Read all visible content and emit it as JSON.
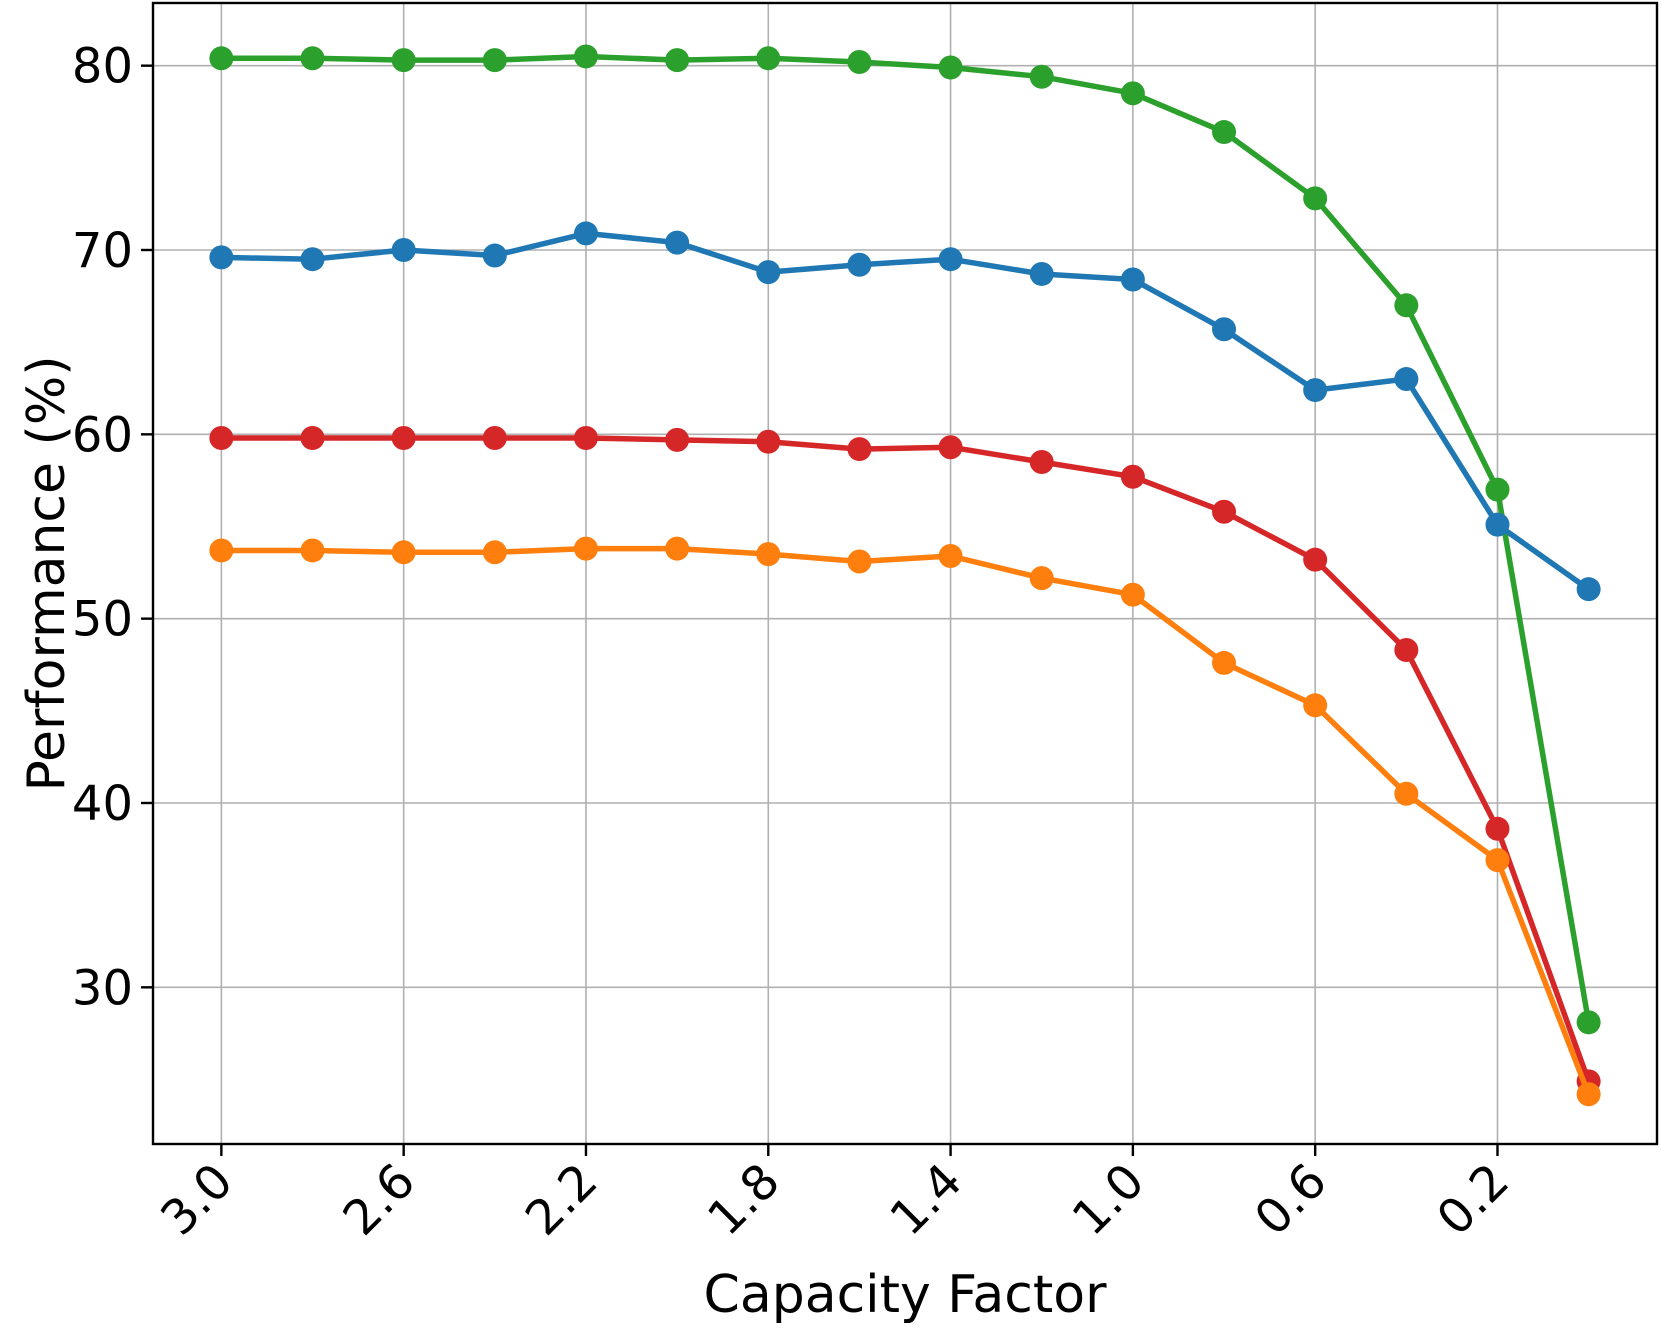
{
  "chart_data": {
    "type": "line",
    "title": "",
    "xlabel": "Capacity Factor",
    "ylabel": "Performance (%)",
    "x_reversed": true,
    "xlim": [
      3.15,
      -0.15
    ],
    "ylim": [
      21.5,
      83.4
    ],
    "x_ticks": [
      3.0,
      2.6,
      2.2,
      1.8,
      1.4,
      1.0,
      0.6,
      0.2
    ],
    "x_tick_labels": [
      "3.0",
      "2.6",
      "2.2",
      "1.8",
      "1.4",
      "1.0",
      "0.6",
      "0.2"
    ],
    "y_ticks": [
      30,
      40,
      50,
      60,
      70,
      80
    ],
    "y_tick_labels": [
      "30",
      "40",
      "50",
      "60",
      "70",
      "80"
    ],
    "grid": true,
    "legend": "none",
    "x": [
      3.0,
      2.8,
      2.6,
      2.4,
      2.2,
      2.0,
      1.8,
      1.6,
      1.4,
      1.2,
      1.0,
      0.8,
      0.6,
      0.4,
      0.2,
      0.0
    ],
    "series": [
      {
        "color": "#2ca02c",
        "values": [
          80.4,
          80.4,
          80.3,
          80.3,
          80.5,
          80.3,
          80.4,
          80.2,
          79.9,
          79.4,
          78.5,
          76.4,
          72.8,
          67.0,
          57.0,
          28.1
        ]
      },
      {
        "color": "#1f77b4",
        "values": [
          69.6,
          69.5,
          70.0,
          69.7,
          70.9,
          70.4,
          68.8,
          69.2,
          69.5,
          68.7,
          68.4,
          65.7,
          62.4,
          63.0,
          55.1,
          51.6
        ]
      },
      {
        "color": "#d62728",
        "values": [
          59.8,
          59.8,
          59.8,
          59.8,
          59.8,
          59.7,
          59.6,
          59.2,
          59.3,
          58.5,
          57.7,
          55.8,
          53.2,
          48.3,
          38.6,
          24.9
        ]
      },
      {
        "color": "#ff7f0e",
        "values": [
          53.7,
          53.7,
          53.6,
          53.6,
          53.8,
          53.8,
          53.5,
          53.1,
          53.4,
          52.2,
          51.3,
          47.6,
          45.3,
          40.5,
          36.9,
          24.2
        ]
      }
    ]
  }
}
